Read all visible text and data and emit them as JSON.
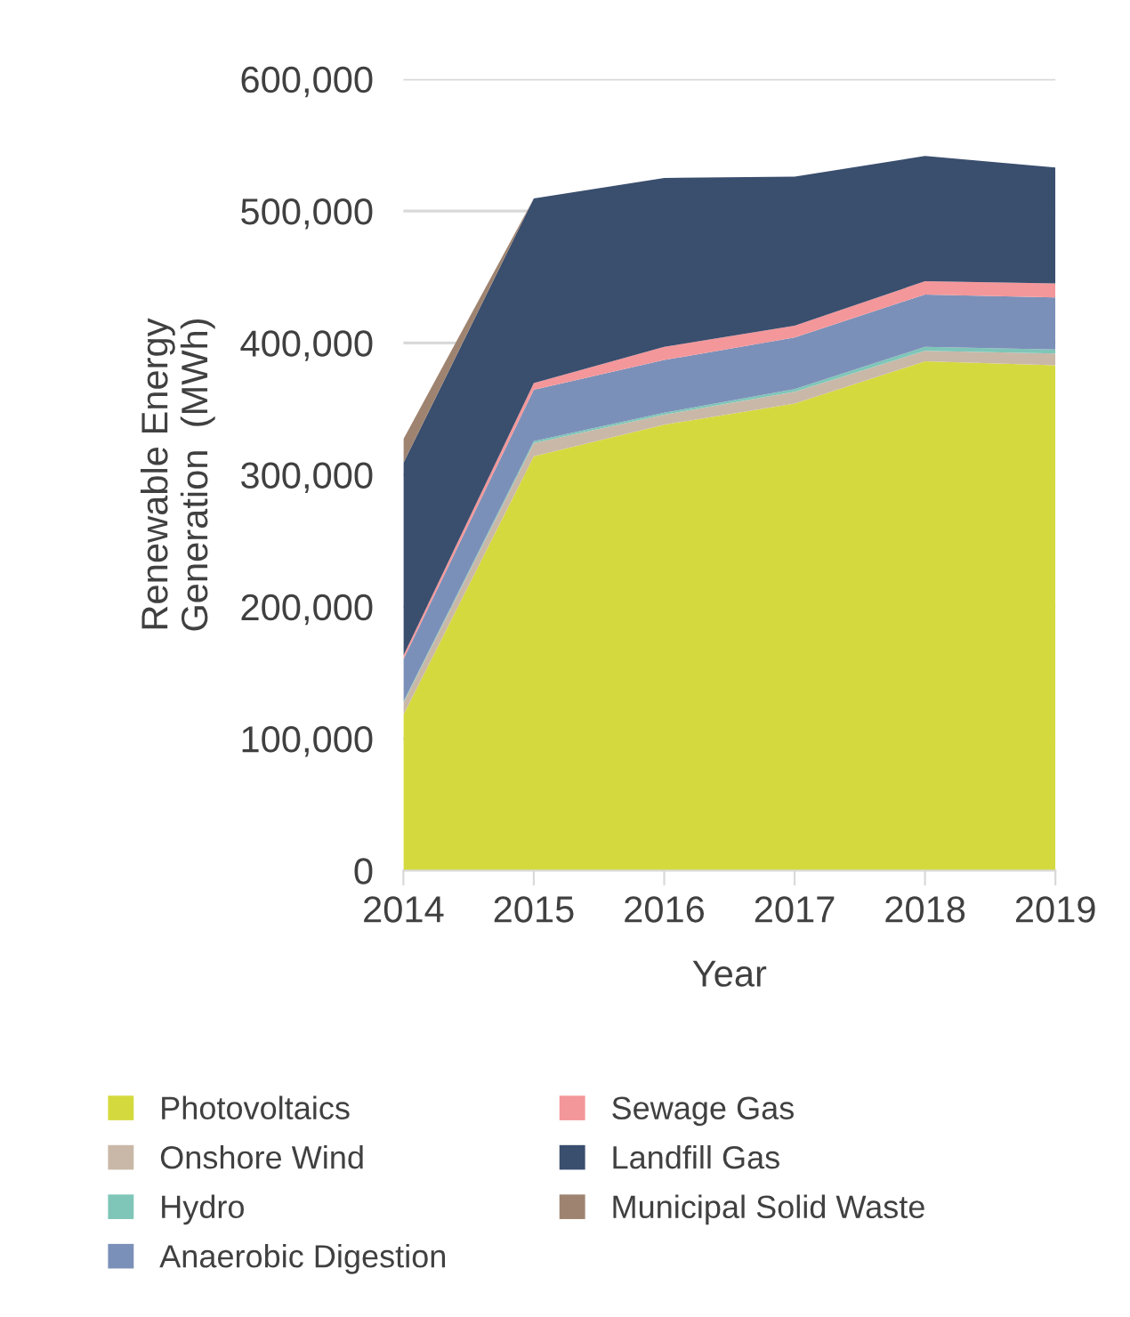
{
  "chart_data": {
    "type": "area",
    "stacked": true,
    "xlabel": "Year",
    "ylabel": "Renewable Energy\nGeneration  (MWh)",
    "x": [
      2014,
      2015,
      2016,
      2017,
      2018,
      2019
    ],
    "xlim": [
      2014,
      2019
    ],
    "xticks": [
      2014,
      2015,
      2016,
      2017,
      2018,
      2019
    ],
    "ylim": [
      0,
      600000
    ],
    "yticks": [
      {
        "value": 0,
        "label": "0"
      },
      {
        "value": 100000,
        "label": "100,000"
      },
      {
        "value": 200000,
        "label": "200,000"
      },
      {
        "value": 300000,
        "label": "300,000"
      },
      {
        "value": 400000,
        "label": "400,000"
      },
      {
        "value": 500000,
        "label": "500,000"
      },
      {
        "value": 600000,
        "label": "600,000"
      }
    ],
    "grid": "y",
    "legend": "bottom",
    "series": [
      {
        "name": "Photovoltaics",
        "color": "#d4da3e",
        "values": [
          118000,
          314000,
          338000,
          354000,
          386000,
          383000
        ]
      },
      {
        "name": "Onshore Wind",
        "color": "#c9b8a8",
        "values": [
          9000,
          10000,
          7500,
          9000,
          8000,
          9000
        ]
      },
      {
        "name": "Hydro",
        "color": "#7fc6b8",
        "values": [
          1000,
          1500,
          1500,
          2000,
          3000,
          3000
        ]
      },
      {
        "name": "Anaerobic Digestion",
        "color": "#7b90b8",
        "values": [
          32000,
          39000,
          40000,
          39000,
          39700,
          39500
        ]
      },
      {
        "name": "Sewage Gas",
        "color": "#f4979a",
        "values": [
          3000,
          5000,
          10000,
          9000,
          10000,
          10500
        ]
      },
      {
        "name": "Landfill Gas",
        "color": "#3a4e6e",
        "values": [
          146000,
          140000,
          128000,
          113000,
          95000,
          88000
        ]
      },
      {
        "name": "Municipal Solid Waste",
        "color": "#9e8470",
        "values": [
          18000,
          0,
          0,
          0,
          0,
          0
        ]
      }
    ]
  }
}
